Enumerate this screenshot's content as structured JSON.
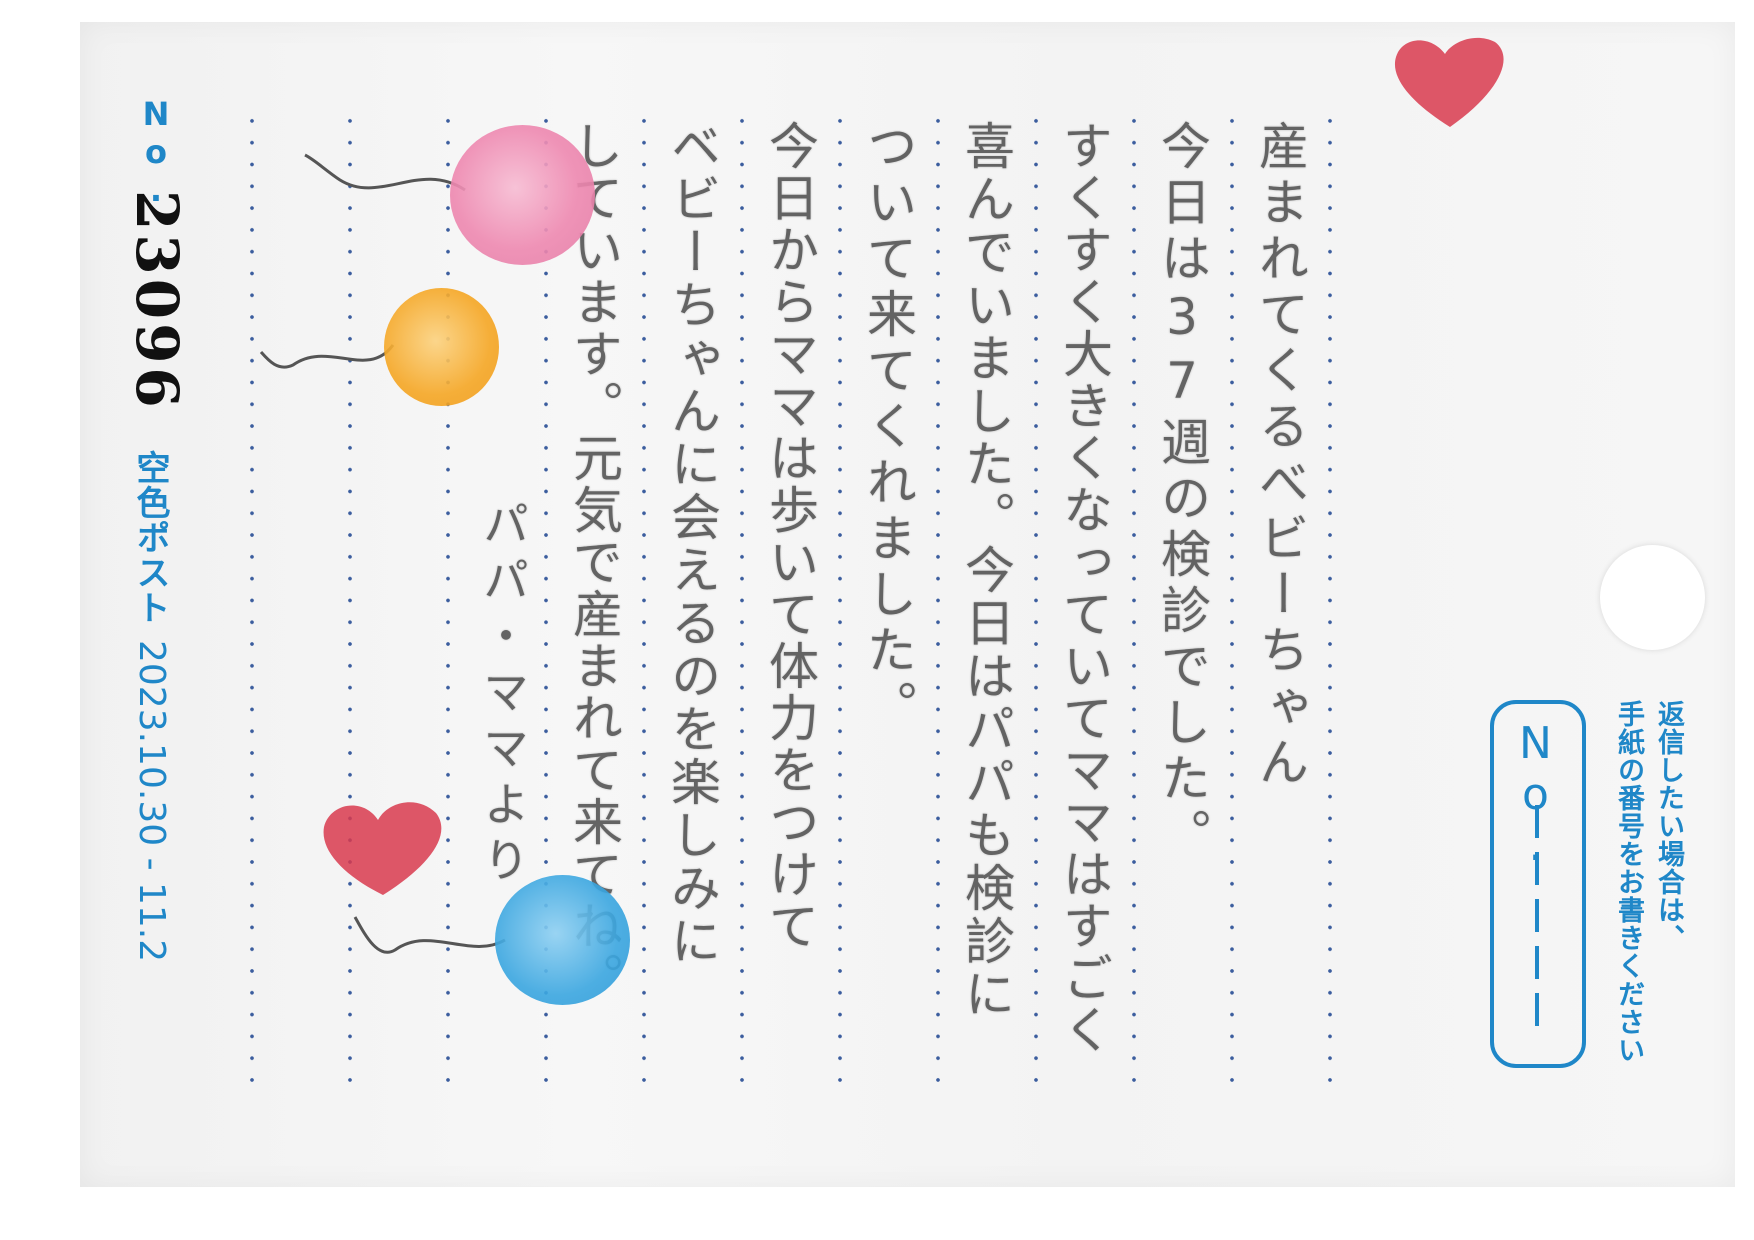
{
  "footer": {
    "no_label": "No.",
    "serial_number": "23096",
    "brand": "空色ポスト",
    "date_range": "2023.10.30 - 11.2"
  },
  "reply": {
    "instruction_line1": "返信したい場合は、",
    "instruction_line2": "手紙の番号をお書きください",
    "no_label": "No."
  },
  "letter": {
    "lines": [
      "産まれてくるべビーちゃん",
      "今日は37週の検診でした。",
      "すくすく大きくなっていてママはすごく",
      "喜んでいました。今日はパパも検診に",
      "ついて来てくれました。",
      "今日からママは歩いて体力をつけて",
      "ベビーちゃんに会えるのを楽しみに",
      "しています。元気で産まれて来てね。",
      "パパ・ママより"
    ]
  },
  "colors": {
    "accent_blue": "#1f87c8",
    "dot_line": "#3b5d9e",
    "heart_red": "#d83a4e",
    "balloon_pink": "#ee88b0",
    "balloon_orange": "#f5a623",
    "balloon_blue": "#3aa6e0"
  },
  "icons": [
    "heart-icon",
    "balloon-icon"
  ]
}
